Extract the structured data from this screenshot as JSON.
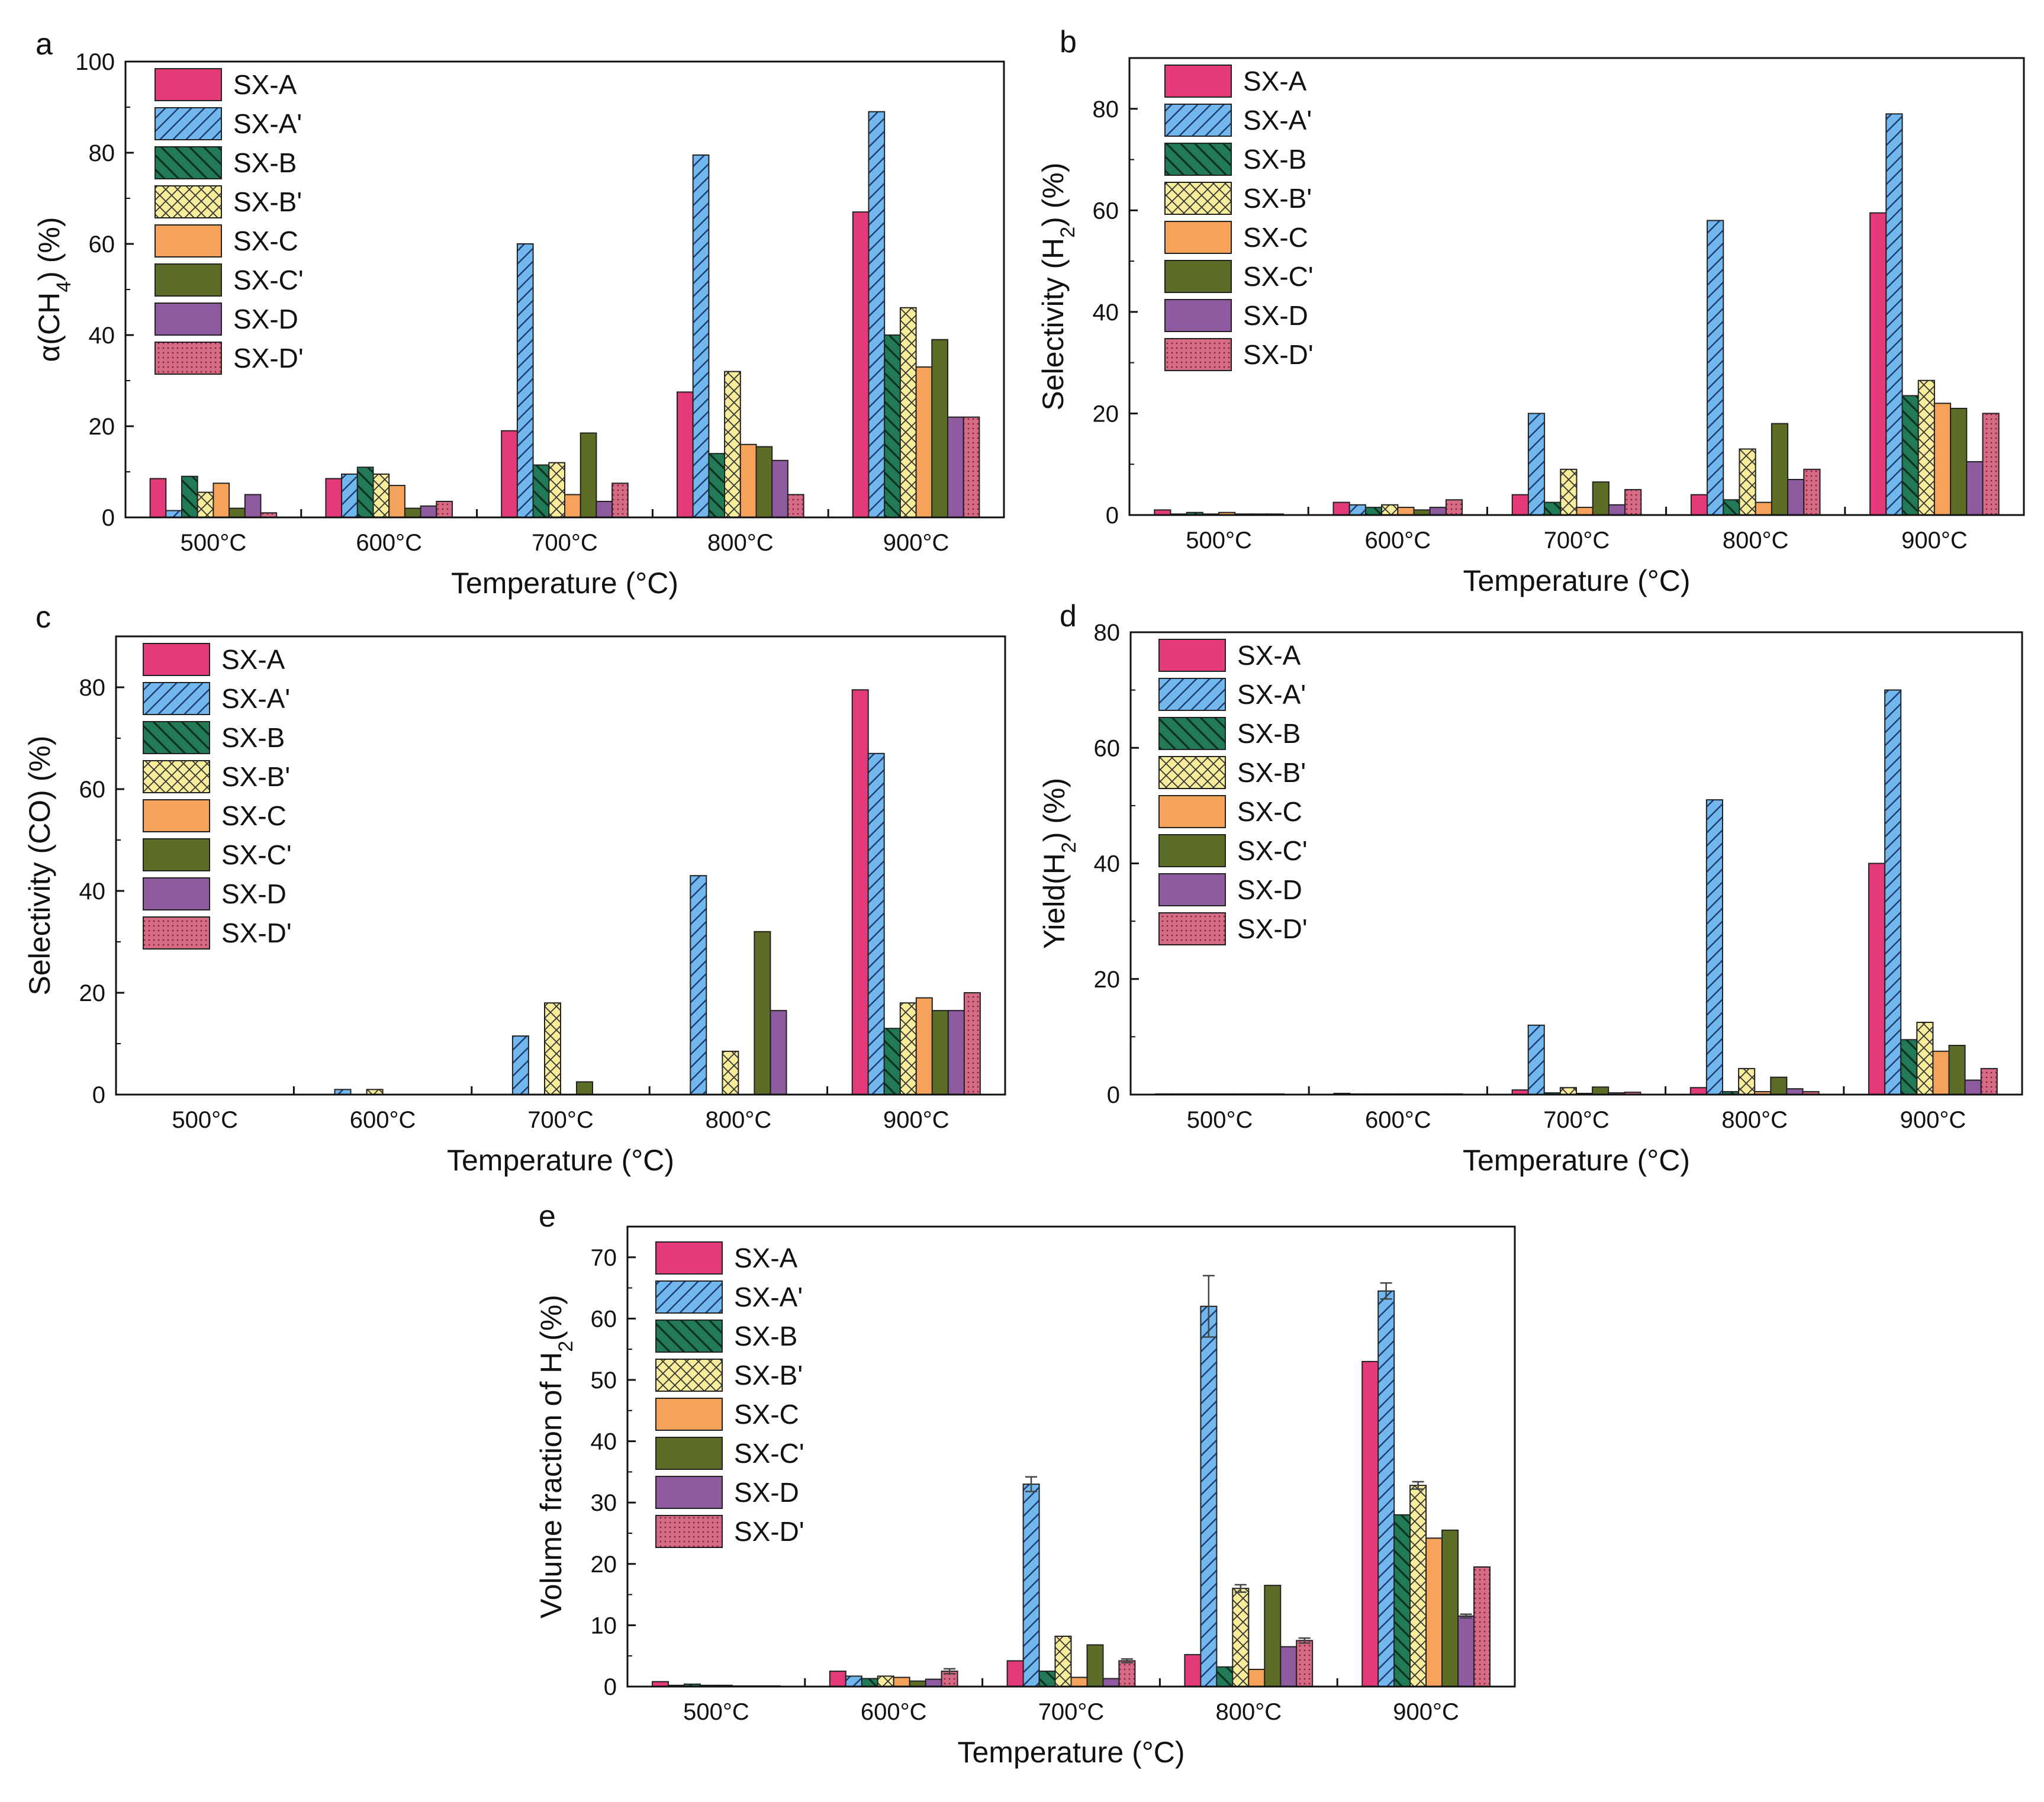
{
  "figure": {
    "x_axis_label": "Temperature (°C)"
  },
  "styles": {
    "SX-A": {
      "color": "#e33b7a",
      "pattern": "solid"
    },
    "SX-A'": {
      "color": "#72b8ee",
      "pattern": "diagonal"
    },
    "SX-B": {
      "color": "#1f7a55",
      "pattern": "back-diagonal"
    },
    "SX-B'": {
      "color": "#f7ec9a",
      "pattern": "crosshatch"
    },
    "SX-C": {
      "color": "#f5a35a",
      "pattern": "solid"
    },
    "SX-C'": {
      "color": "#5c6e26",
      "pattern": "solid"
    },
    "SX-D": {
      "color": "#8e5aa0",
      "pattern": "solid"
    },
    "SX-D'": {
      "color": "#d76b86",
      "pattern": "dots"
    }
  },
  "chart_data": [
    {
      "panel": "a",
      "type": "bar",
      "title": "",
      "xlabel": "Temperature (°C)",
      "ylabel_parts": [
        "α(CH",
        "4",
        ") (%)"
      ],
      "ylim": [
        0,
        100
      ],
      "yticks": [
        0,
        20,
        40,
        60,
        80,
        100
      ],
      "legend_position": "top-left",
      "categories": [
        "500°C",
        "600°C",
        "700°C",
        "800°C",
        "900°C"
      ],
      "series": [
        {
          "name": "SX-A",
          "values": [
            8.5,
            8.5,
            19,
            27.5,
            67
          ]
        },
        {
          "name": "SX-A'",
          "values": [
            1.5,
            9.5,
            60,
            79.5,
            89
          ]
        },
        {
          "name": "SX-B",
          "values": [
            9,
            11,
            11.5,
            14,
            40
          ]
        },
        {
          "name": "SX-B'",
          "values": [
            5.5,
            9.5,
            12,
            32,
            46
          ]
        },
        {
          "name": "SX-C",
          "values": [
            7.5,
            7,
            5,
            16,
            33
          ]
        },
        {
          "name": "SX-C'",
          "values": [
            2,
            2,
            18.5,
            15.5,
            39
          ]
        },
        {
          "name": "SX-D",
          "values": [
            5,
            2.5,
            3.5,
            12.5,
            22
          ]
        },
        {
          "name": "SX-D'",
          "values": [
            1,
            3.5,
            7.5,
            5,
            22
          ]
        }
      ]
    },
    {
      "panel": "b",
      "type": "bar",
      "title": "",
      "xlabel": "Temperature (°C)",
      "ylabel_parts": [
        "Selectivity (H",
        "2",
        ") (%)"
      ],
      "ylim": [
        0,
        90
      ],
      "yticks": [
        0,
        20,
        40,
        60,
        80
      ],
      "legend_position": "top-left",
      "categories": [
        "500°C",
        "600°C",
        "700°C",
        "800°C",
        "900°C"
      ],
      "series": [
        {
          "name": "SX-A",
          "values": [
            1,
            2.5,
            4,
            4,
            59.5
          ]
        },
        {
          "name": "SX-A'",
          "values": [
            0.2,
            2,
            20,
            58,
            79
          ]
        },
        {
          "name": "SX-B",
          "values": [
            0.5,
            1.5,
            2.5,
            3,
            23.5
          ]
        },
        {
          "name": "SX-B'",
          "values": [
            0.2,
            2,
            9,
            13,
            26.5
          ]
        },
        {
          "name": "SX-C",
          "values": [
            0.5,
            1.5,
            1.5,
            2.5,
            22
          ]
        },
        {
          "name": "SX-C'",
          "values": [
            0.2,
            1,
            6.5,
            18,
            21
          ]
        },
        {
          "name": "SX-D",
          "values": [
            0.2,
            1.5,
            2,
            7,
            10.5
          ]
        },
        {
          "name": "SX-D'",
          "values": [
            0.2,
            3,
            5,
            9,
            20
          ]
        }
      ]
    },
    {
      "panel": "c",
      "type": "bar",
      "title": "",
      "xlabel": "Temperature (°C)",
      "ylabel_parts": [
        "Selectivity (CO) (%)"
      ],
      "ylim": [
        0,
        90
      ],
      "yticks": [
        0,
        20,
        40,
        60,
        80
      ],
      "legend_position": "top-left",
      "categories": [
        "500°C",
        "600°C",
        "700°C",
        "800°C",
        "900°C"
      ],
      "series": [
        {
          "name": "SX-A",
          "values": [
            0,
            0,
            0,
            0,
            79.5
          ]
        },
        {
          "name": "SX-A'",
          "values": [
            0,
            1,
            11.5,
            43,
            67
          ]
        },
        {
          "name": "SX-B",
          "values": [
            0,
            0,
            0,
            0,
            13
          ]
        },
        {
          "name": "SX-B'",
          "values": [
            0,
            1,
            18,
            8.5,
            18
          ]
        },
        {
          "name": "SX-C",
          "values": [
            0,
            0,
            0,
            0,
            19
          ]
        },
        {
          "name": "SX-C'",
          "values": [
            0,
            0,
            2.5,
            32,
            16.5
          ]
        },
        {
          "name": "SX-D",
          "values": [
            0,
            0,
            0,
            16.5,
            16.5
          ]
        },
        {
          "name": "SX-D'",
          "values": [
            0,
            0,
            0,
            0,
            20
          ]
        }
      ]
    },
    {
      "panel": "d",
      "type": "bar",
      "title": "",
      "xlabel": "Temperature (°C)",
      "ylabel_parts": [
        "Yield(H",
        "2",
        ") (%)"
      ],
      "ylim": [
        0,
        80
      ],
      "yticks": [
        0,
        20,
        40,
        60,
        80
      ],
      "legend_position": "top-left",
      "categories": [
        "500°C",
        "600°C",
        "700°C",
        "800°C",
        "900°C"
      ],
      "series": [
        {
          "name": "SX-A",
          "values": [
            0.1,
            0.2,
            0.8,
            1.2,
            40
          ]
        },
        {
          "name": "SX-A'",
          "values": [
            0.1,
            0.1,
            12,
            51,
            70
          ]
        },
        {
          "name": "SX-B",
          "values": [
            0.1,
            0.1,
            0.3,
            0.5,
            9.5
          ]
        },
        {
          "name": "SX-B'",
          "values": [
            0.1,
            0.1,
            1.2,
            4.5,
            12.5
          ]
        },
        {
          "name": "SX-C",
          "values": [
            0.1,
            0.1,
            0.2,
            0.5,
            7.5
          ]
        },
        {
          "name": "SX-C'",
          "values": [
            0.1,
            0.1,
            1.3,
            3,
            8.5
          ]
        },
        {
          "name": "SX-D",
          "values": [
            0.1,
            0.1,
            0.3,
            1,
            2.5
          ]
        },
        {
          "name": "SX-D'",
          "values": [
            0.1,
            0.1,
            0.4,
            0.5,
            4.5
          ]
        }
      ]
    },
    {
      "panel": "e",
      "type": "bar",
      "title": "",
      "xlabel": "Temperature (°C)",
      "ylabel_parts": [
        "Volume fraction of H",
        "2",
        "(%)"
      ],
      "ylim": [
        0,
        75
      ],
      "yticks": [
        0,
        10,
        20,
        30,
        40,
        50,
        60,
        70
      ],
      "legend_position": "top-left",
      "categories": [
        "500°C",
        "600°C",
        "700°C",
        "800°C",
        "900°C"
      ],
      "series": [
        {
          "name": "SX-A",
          "values": [
            0.8,
            2.5,
            4.2,
            5.2,
            53
          ],
          "errors": [
            0,
            0,
            0,
            0,
            0
          ]
        },
        {
          "name": "SX-A'",
          "values": [
            0.2,
            1.7,
            33,
            62,
            64.5
          ],
          "errors": [
            0,
            0,
            1.2,
            5,
            1.3
          ]
        },
        {
          "name": "SX-B",
          "values": [
            0.4,
            1.3,
            2.5,
            3.2,
            28
          ],
          "errors": [
            0,
            0,
            0,
            0,
            0
          ]
        },
        {
          "name": "SX-B'",
          "values": [
            0.2,
            1.7,
            8.2,
            16,
            32.8
          ],
          "errors": [
            0,
            0,
            0,
            0.6,
            0.6
          ]
        },
        {
          "name": "SX-C",
          "values": [
            0.2,
            1.5,
            1.5,
            2.8,
            24.2
          ],
          "errors": [
            0,
            0,
            0,
            0,
            0
          ]
        },
        {
          "name": "SX-C'",
          "values": [
            0.1,
            0.9,
            6.8,
            16.5,
            25.5
          ],
          "errors": [
            0,
            0,
            0,
            0,
            0
          ]
        },
        {
          "name": "SX-D",
          "values": [
            0.1,
            1.2,
            1.3,
            6.5,
            11.5
          ],
          "errors": [
            0,
            0,
            0,
            0,
            0.3
          ]
        },
        {
          "name": "SX-D'",
          "values": [
            0.1,
            2.5,
            4.2,
            7.5,
            19.5
          ],
          "errors": [
            0,
            0.4,
            0.3,
            0.4,
            0
          ]
        }
      ]
    }
  ]
}
